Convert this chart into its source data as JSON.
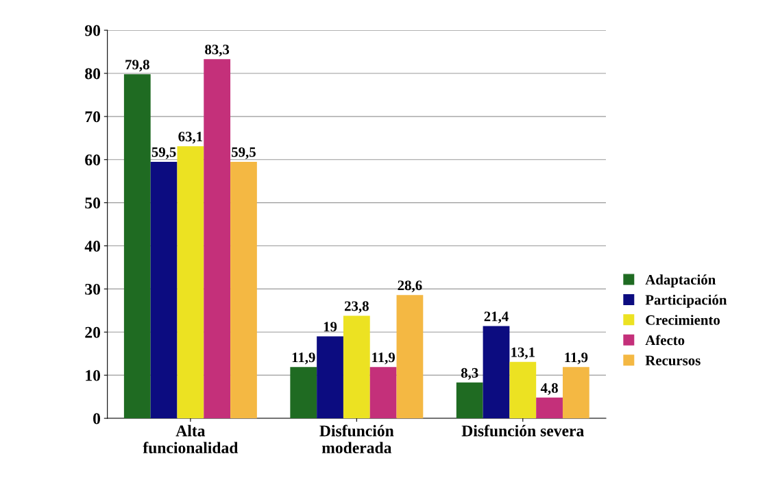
{
  "chart_data": {
    "type": "bar",
    "categories": [
      "Alta\nfuncionalidad",
      "Disfunción\nmoderada",
      "Disfunción severa"
    ],
    "series": [
      {
        "name": "Adaptación",
        "color": "#1f6b22",
        "values": [
          79.8,
          11.9,
          8.3
        ],
        "value_labels": [
          "79,8",
          "11,9",
          "8,3"
        ]
      },
      {
        "name": "Participación",
        "color": "#0c0c80",
        "values": [
          59.5,
          19,
          21.4
        ],
        "value_labels": [
          "59,5",
          "19",
          "21,4"
        ]
      },
      {
        "name": "Crecimiento",
        "color": "#ece222",
        "values": [
          63.1,
          23.8,
          13.1
        ],
        "value_labels": [
          "63,1",
          "23,8",
          "13,1"
        ]
      },
      {
        "name": "Afecto",
        "color": "#c4307a",
        "values": [
          83.3,
          11.9,
          4.8
        ],
        "value_labels": [
          "83,3",
          "11,9",
          "4,8"
        ]
      },
      {
        "name": "Recursos",
        "color": "#f4b843",
        "values": [
          59.5,
          28.6,
          11.9
        ],
        "value_labels": [
          "59,5",
          "28,6",
          "11,9"
        ]
      }
    ],
    "ylim": [
      0,
      90
    ],
    "yticks": [
      0,
      10,
      20,
      30,
      40,
      50,
      60,
      70,
      80,
      90
    ],
    "grid": "y",
    "legend": "right"
  }
}
